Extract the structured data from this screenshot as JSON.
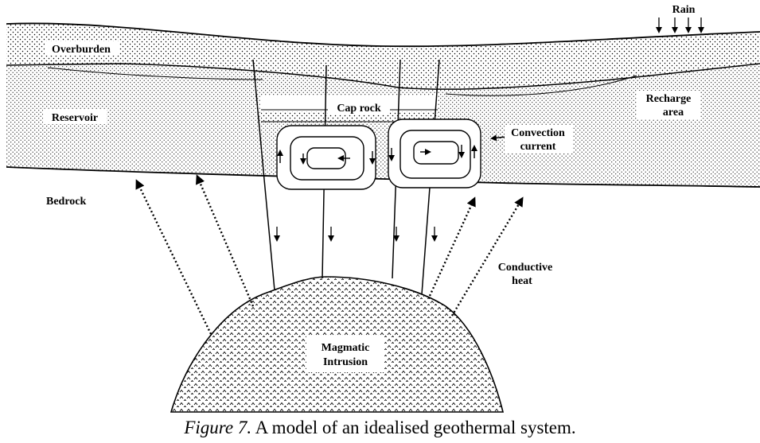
{
  "labels": {
    "rain": "Rain",
    "overburden": "Overburden",
    "reservoir": "Reservoir",
    "cap_rock": "Cap rock",
    "recharge_line1": "Recharge",
    "recharge_line2": "area",
    "convection_line1": "Convection",
    "convection_line2": "current",
    "bedrock": "Bedrock",
    "conductive_line1": "Conductive",
    "conductive_line2": "heat",
    "magmatic_line1": "Magmatic",
    "magmatic_line2": "Intrusion"
  },
  "caption": {
    "figure_label": "Figure 7.",
    "text": " A model of an idealised geothermal system."
  }
}
